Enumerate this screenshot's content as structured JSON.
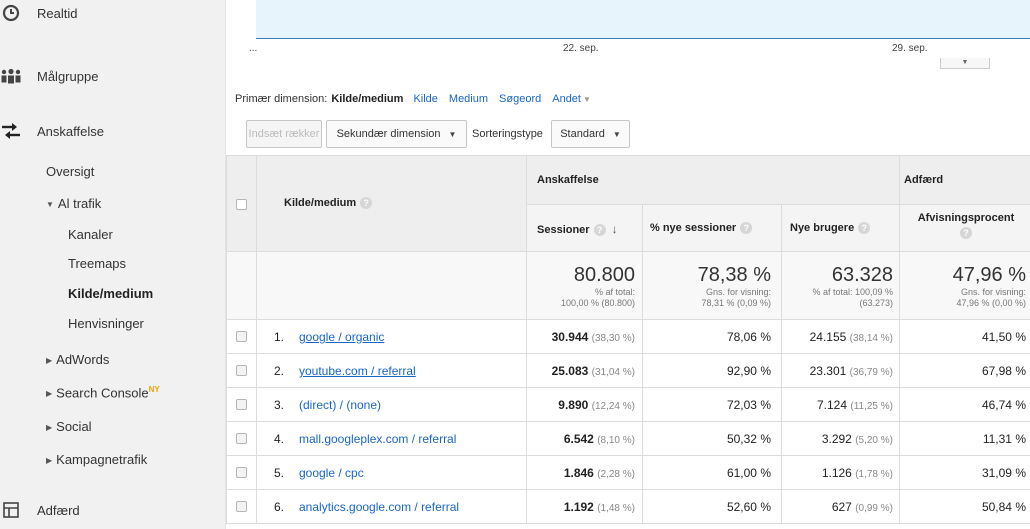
{
  "sidebar": {
    "realtid": "Realtid",
    "malgruppe": "Målgruppe",
    "anskaffelse": "Anskaffelse",
    "oversigt": "Oversigt",
    "al_trafik": "Al trafik",
    "kanaler": "Kanaler",
    "treemaps": "Treemaps",
    "kilde_medium": "Kilde/medium",
    "henvisninger": "Henvisninger",
    "adwords": "AdWords",
    "search_console": "Search Console",
    "search_console_badge": "NY",
    "social": "Social",
    "kampagnetrafik": "Kampagnetrafik",
    "adfaerd": "Adfærd"
  },
  "chart": {
    "ellipsis": "...",
    "date1": "22. sep.",
    "date2": "29. sep."
  },
  "dimension": {
    "label": "Primær dimension:",
    "current": "Kilde/medium",
    "options": [
      "Kilde",
      "Medium",
      "Søgeord",
      "Andet"
    ]
  },
  "toolbar": {
    "insert_rows": "Indsæt rækker",
    "secondary_dim": "Sekundær dimension",
    "sort_label": "Sorteringstype",
    "sort_value": "Standard"
  },
  "table": {
    "group_acq": "Anskaffelse",
    "group_beh": "Adfærd",
    "col_source": "Kilde/medium",
    "col_sessions": "Sessioner",
    "col_new_sessions": "% nye sessioner",
    "col_new_users": "Nye brugere",
    "col_bounce": "Afvisningsprocent",
    "help": "?",
    "totals": {
      "sessions": "80.800",
      "sessions_sub1": "% af total:",
      "sessions_sub2": "100,00 % (80.800)",
      "new_sessions": "78,38 %",
      "new_sessions_sub1": "Gns. for visning:",
      "new_sessions_sub2": "78,31 % (0,09 %)",
      "new_users": "63.328",
      "new_users_sub1": "% af total: 100,09 %",
      "new_users_sub2": "(63.273)",
      "bounce": "47,96 %",
      "bounce_sub1": "Gns. for visning:",
      "bounce_sub2": "47,96 % (0,00 %)"
    },
    "rows": [
      {
        "idx": "1.",
        "source": "google / organic",
        "sessions": "30.944",
        "sessions_pct": "(38,30 %)",
        "new_sessions": "78,06 %",
        "new_users": "24.155",
        "new_users_pct": "(38,14 %)",
        "bounce": "41,50 %"
      },
      {
        "idx": "2.",
        "source": "youtube.com / referral",
        "sessions": "25.083",
        "sessions_pct": "(31,04 %)",
        "new_sessions": "92,90 %",
        "new_users": "23.301",
        "new_users_pct": "(36,79 %)",
        "bounce": "67,98 %"
      },
      {
        "idx": "3.",
        "source": "(direct) / (none)",
        "sessions": "9.890",
        "sessions_pct": "(12,24 %)",
        "new_sessions": "72,03 %",
        "new_users": "7.124",
        "new_users_pct": "(11,25 %)",
        "bounce": "46,74 %"
      },
      {
        "idx": "4.",
        "source": "mall.googleplex.com / referral",
        "sessions": "6.542",
        "sessions_pct": "(8,10 %)",
        "new_sessions": "50,32 %",
        "new_users": "3.292",
        "new_users_pct": "(5,20 %)",
        "bounce": "11,31 %"
      },
      {
        "idx": "5.",
        "source": "google / cpc",
        "sessions": "1.846",
        "sessions_pct": "(2,28 %)",
        "new_sessions": "61,00 %",
        "new_users": "1.126",
        "new_users_pct": "(1,78 %)",
        "bounce": "31,09 %"
      },
      {
        "idx": "6.",
        "source": "analytics.google.com / referral",
        "sessions": "1.192",
        "sessions_pct": "(1,48 %)",
        "new_sessions": "52,60 %",
        "new_users": "627",
        "new_users_pct": "(0,99 %)",
        "bounce": "50,84 %"
      }
    ]
  },
  "colors": {
    "link": "#1a66c5",
    "chart_fill": "#e8f4fb",
    "chart_line": "#3b7fc2",
    "badge": "#f2a200"
  }
}
